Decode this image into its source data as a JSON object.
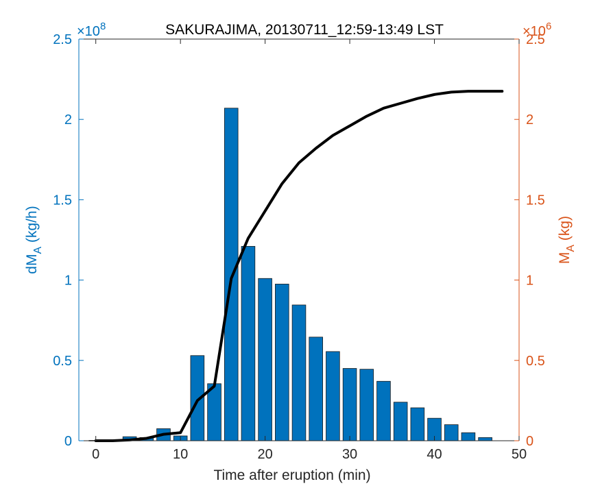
{
  "chart_data": {
    "type": "bar",
    "title": "SAKURAJIMA, 20130711_12:59-13:49 LST",
    "xlabel": "Time after eruption (min)",
    "xlim": [
      -2,
      50
    ],
    "x_ticks": [
      "0",
      "10",
      "20",
      "30",
      "40",
      "50"
    ],
    "left_axis": {
      "label": "dM",
      "label_sub": "A",
      "label_unit": " (kg/h)",
      "ylim": [
        0,
        2.5
      ],
      "exponent_label": "×10",
      "exponent": "8",
      "ticks": [
        "0",
        "0.5",
        "1",
        "1.5",
        "2",
        "2.5"
      ],
      "color": "#0072BD"
    },
    "right_axis": {
      "label": "M",
      "label_sub": "A",
      "label_unit": " (kg)",
      "ylim": [
        0,
        2.5
      ],
      "exponent_label": "×10",
      "exponent": "6",
      "ticks": [
        "0",
        "0.5",
        "1",
        "1.5",
        "2",
        "2.5"
      ],
      "color": "#D95319"
    },
    "bars": {
      "axis": "left",
      "color": "#0072BD",
      "bar_width": 1.6,
      "x": [
        0,
        2,
        4,
        6,
        8,
        10,
        12,
        14,
        16,
        18,
        20,
        22,
        24,
        26,
        28,
        30,
        32,
        34,
        36,
        38,
        40,
        42,
        44,
        46
      ],
      "values": [
        0.002,
        0.003,
        0.025,
        0.02,
        0.075,
        0.03,
        0.53,
        0.355,
        2.07,
        1.21,
        1.01,
        0.975,
        0.845,
        0.645,
        0.555,
        0.45,
        0.445,
        0.37,
        0.24,
        0.205,
        0.14,
        0.1,
        0.05,
        0.02
      ]
    },
    "line": {
      "axis": "right",
      "color": "#000000",
      "x": [
        0,
        2,
        4,
        6,
        8,
        10,
        12,
        14,
        16,
        18,
        20,
        22,
        24,
        26,
        28,
        30,
        32,
        34,
        36,
        38,
        40,
        42,
        44,
        46,
        48
      ],
      "values": [
        0,
        0,
        0.005,
        0.015,
        0.04,
        0.05,
        0.25,
        0.34,
        1.01,
        1.26,
        1.43,
        1.6,
        1.73,
        1.82,
        1.9,
        1.96,
        2.02,
        2.07,
        2.1,
        2.13,
        2.155,
        2.17,
        2.175,
        2.175,
        2.175
      ]
    },
    "grid": false,
    "legend": "none"
  }
}
